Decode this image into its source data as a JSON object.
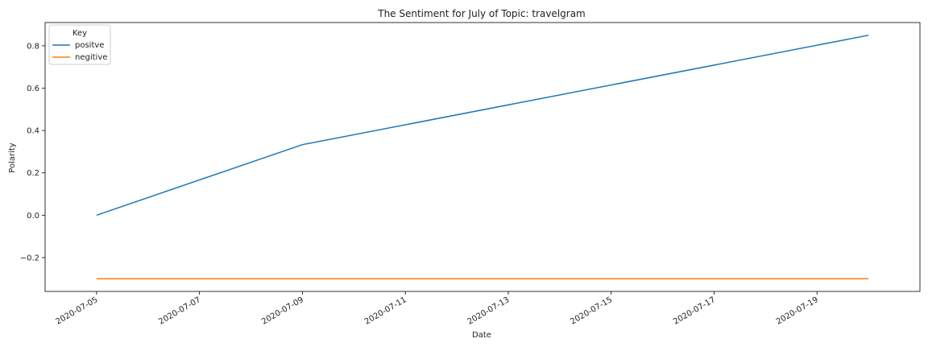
{
  "chart_data": {
    "type": "line",
    "title": "The Sentiment for July of Topic: travelgram",
    "xlabel": "Date",
    "ylabel": "Polarity",
    "x": [
      "2020-07-05",
      "2020-07-09",
      "2020-07-20"
    ],
    "series": [
      {
        "name": "positve",
        "color": "#1f77b4",
        "values": [
          0.0,
          0.333,
          0.85
        ]
      },
      {
        "name": "negitive",
        "color": "#ff7f0e",
        "values": [
          -0.3,
          -0.3,
          -0.3
        ]
      }
    ],
    "xlim": [
      "2020-07-04",
      "2020-07-21"
    ],
    "ylim": [
      -0.36,
      0.91
    ],
    "x_ticks": [
      "2020-07-05",
      "2020-07-07",
      "2020-07-09",
      "2020-07-11",
      "2020-07-13",
      "2020-07-15",
      "2020-07-17",
      "2020-07-19"
    ],
    "y_ticks": [
      -0.2,
      0.0,
      0.2,
      0.4,
      0.6,
      0.8
    ],
    "y_tick_labels": [
      "−0.2",
      "0.0",
      "0.2",
      "0.4",
      "0.6",
      "0.8"
    ],
    "legend": {
      "title": "Key",
      "placement": "top-left"
    },
    "grid": false
  }
}
